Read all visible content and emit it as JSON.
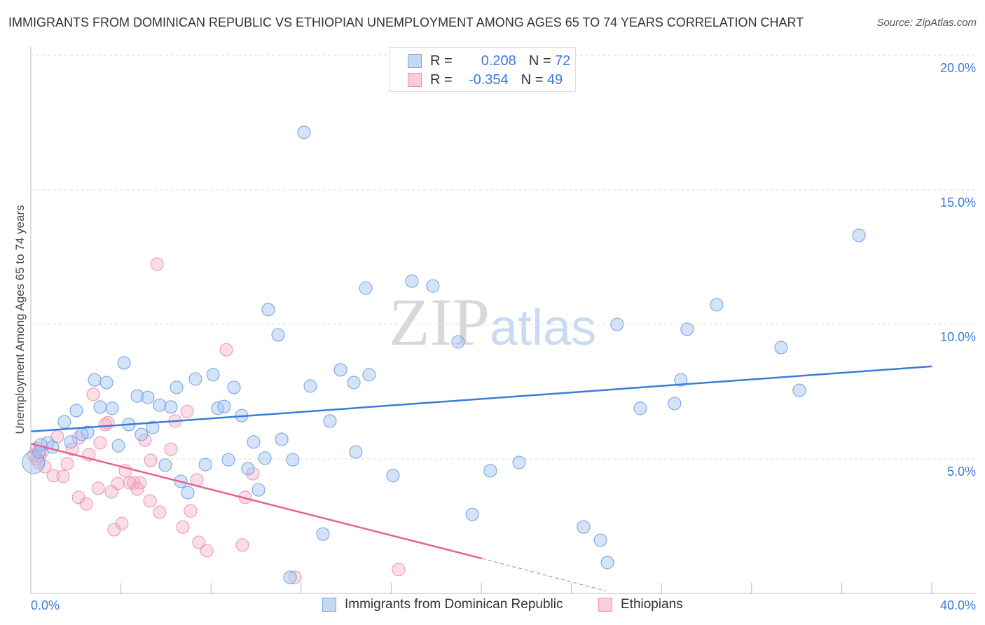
{
  "title": "IMMIGRANTS FROM DOMINICAN REPUBLIC VS ETHIOPIAN UNEMPLOYMENT AMONG AGES 65 TO 74 YEARS CORRELATION CHART",
  "source": "Source: ZipAtlas.com",
  "watermark": "ZIPatlas",
  "legend": {
    "r_label": "R =",
    "n_label": "N =",
    "series": [
      {
        "r": "0.208",
        "n": "72"
      },
      {
        "r": "-0.354",
        "n": "49"
      }
    ]
  },
  "chart_data": {
    "type": "scatter",
    "xlabel": "",
    "ylabel": "Unemployment Among Ages 65 to 74 years",
    "xlim": [
      0,
      40
    ],
    "ylim": [
      0,
      20
    ],
    "x_tick_labels": [
      "0.0%",
      "40.0%"
    ],
    "y_ticks": [
      5,
      10,
      15,
      20
    ],
    "y_tick_labels": [
      "5.0%",
      "10.0%",
      "15.0%",
      "20.0%"
    ],
    "grid": true,
    "legend_position": "bottom",
    "colors": {
      "blue": "#3d7bd9",
      "pink": "#e8628f"
    },
    "series": [
      {
        "name": "Immigrants from Dominican Republic",
        "color": "#3d7bd9",
        "trend": [
          [
            0,
            6.02
          ],
          [
            40,
            8.44
          ]
        ],
        "points": [
          [
            12.13,
            17.14
          ],
          [
            36.77,
            13.31
          ],
          [
            16.92,
            11.61
          ],
          [
            17.85,
            11.43
          ],
          [
            14.87,
            11.35
          ],
          [
            10.54,
            10.55
          ],
          [
            30.45,
            10.73
          ],
          [
            26.03,
            10.0
          ],
          [
            29.14,
            9.82
          ],
          [
            10.98,
            9.61
          ],
          [
            18.97,
            9.35
          ],
          [
            33.31,
            9.14
          ],
          [
            4.14,
            8.57
          ],
          [
            13.75,
            8.31
          ],
          [
            15.02,
            8.13
          ],
          [
            14.34,
            7.84
          ],
          [
            2.83,
            7.94
          ],
          [
            3.36,
            7.84
          ],
          [
            8.09,
            8.13
          ],
          [
            7.31,
            7.97
          ],
          [
            6.47,
            7.66
          ],
          [
            9.02,
            7.66
          ],
          [
            12.41,
            7.71
          ],
          [
            34.12,
            7.55
          ],
          [
            28.86,
            7.94
          ],
          [
            4.73,
            7.34
          ],
          [
            5.19,
            7.29
          ],
          [
            2.02,
            6.8
          ],
          [
            3.08,
            6.93
          ],
          [
            3.61,
            6.88
          ],
          [
            5.72,
            7.0
          ],
          [
            6.22,
            6.93
          ],
          [
            8.3,
            6.88
          ],
          [
            8.58,
            6.95
          ],
          [
            9.36,
            6.61
          ],
          [
            27.06,
            6.88
          ],
          [
            28.58,
            7.06
          ],
          [
            1.49,
            6.38
          ],
          [
            4.35,
            6.28
          ],
          [
            5.41,
            6.17
          ],
          [
            13.28,
            6.41
          ],
          [
            2.52,
            5.99
          ],
          [
            2.27,
            5.91
          ],
          [
            4.91,
            5.91
          ],
          [
            1.77,
            5.63
          ],
          [
            0.75,
            5.6
          ],
          [
            0.96,
            5.44
          ],
          [
            0.44,
            5.52
          ],
          [
            3.89,
            5.49
          ],
          [
            9.89,
            5.63
          ],
          [
            11.14,
            5.73
          ],
          [
            14.43,
            5.26
          ],
          [
            8.77,
            4.97
          ],
          [
            10.39,
            5.03
          ],
          [
            11.63,
            4.97
          ],
          [
            5.97,
            4.77
          ],
          [
            7.75,
            4.79
          ],
          [
            9.64,
            4.64
          ],
          [
            21.68,
            4.87
          ],
          [
            20.4,
            4.56
          ],
          [
            16.08,
            4.38
          ],
          [
            6.66,
            4.17
          ],
          [
            10.11,
            3.85
          ],
          [
            6.97,
            3.75
          ],
          [
            19.6,
            2.94
          ],
          [
            24.54,
            2.47
          ],
          [
            12.97,
            2.21
          ],
          [
            25.29,
            1.98
          ],
          [
            25.6,
            1.15
          ],
          [
            11.51,
            0.6
          ],
          [
            0.12,
            4.87
          ],
          [
            0.37,
            5.26
          ]
        ]
      },
      {
        "name": "Ethiopians",
        "color": "#e8628f",
        "trend": [
          [
            0,
            5.57
          ],
          [
            20.03,
            1.3
          ]
        ],
        "trend_dashed": [
          [
            20.03,
            1.3
          ],
          [
            25.5,
            0.1
          ]
        ],
        "points": [
          [
            5.6,
            12.24
          ],
          [
            8.68,
            9.06
          ],
          [
            2.77,
            7.4
          ],
          [
            6.94,
            6.77
          ],
          [
            6.41,
            6.41
          ],
          [
            3.42,
            6.35
          ],
          [
            3.3,
            6.28
          ],
          [
            1.18,
            5.83
          ],
          [
            2.12,
            5.78
          ],
          [
            3.08,
            5.6
          ],
          [
            5.07,
            5.7
          ],
          [
            1.84,
            5.36
          ],
          [
            6.22,
            5.36
          ],
          [
            2.58,
            5.16
          ],
          [
            0.4,
            5.13
          ],
          [
            0.25,
            5.0
          ],
          [
            5.32,
            4.95
          ],
          [
            1.62,
            4.82
          ],
          [
            0.62,
            4.71
          ],
          [
            4.2,
            4.56
          ],
          [
            9.86,
            4.45
          ],
          [
            1.0,
            4.38
          ],
          [
            1.43,
            4.35
          ],
          [
            7.37,
            4.22
          ],
          [
            4.39,
            4.11
          ],
          [
            3.86,
            4.09
          ],
          [
            4.85,
            4.11
          ],
          [
            4.57,
            4.11
          ],
          [
            2.99,
            3.91
          ],
          [
            3.58,
            3.78
          ],
          [
            4.73,
            3.88
          ],
          [
            2.12,
            3.57
          ],
          [
            9.52,
            3.57
          ],
          [
            5.29,
            3.44
          ],
          [
            2.46,
            3.33
          ],
          [
            5.72,
            3.02
          ],
          [
            7.09,
            3.07
          ],
          [
            4.04,
            2.6
          ],
          [
            3.7,
            2.37
          ],
          [
            6.75,
            2.47
          ],
          [
            7.46,
            1.9
          ],
          [
            9.39,
            1.8
          ],
          [
            7.81,
            1.59
          ],
          [
            11.73,
            0.6
          ],
          [
            16.33,
            0.89
          ],
          [
            0.12,
            5.13
          ],
          [
            0.5,
            5.26
          ],
          [
            0.34,
            4.87
          ],
          [
            0.25,
            5.39
          ]
        ]
      }
    ]
  }
}
